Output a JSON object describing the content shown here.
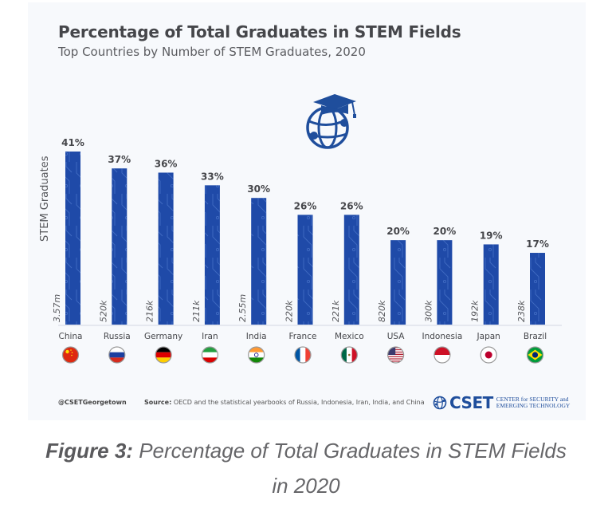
{
  "colors": {
    "bar": "#1f4aa8",
    "bar_pattern": "#5b86d6",
    "title": "#45464a",
    "text": "#55565a",
    "background": "#f7f9fc",
    "brand": "#1f4e9c"
  },
  "chart_data": {
    "type": "bar",
    "title": "Percentage of Total Graduates in STEM Fields",
    "subtitle": "Top Countries by Number of STEM Graduates, 2020",
    "xlabel": "",
    "ylabel": "STEM Graduates",
    "ylim": [
      0,
      45
    ],
    "grid": false,
    "legend": "none",
    "categories": [
      "China",
      "Russia",
      "Germany",
      "Iran",
      "India",
      "France",
      "Mexico",
      "USA",
      "Indonesia",
      "Japan",
      "Brazil"
    ],
    "series": [
      {
        "name": "Percentage of Total Graduates in STEM Fields",
        "values": [
          41,
          37,
          36,
          33,
          30,
          26,
          26,
          20,
          20,
          19,
          17
        ],
        "labels": [
          "41%",
          "37%",
          "36%",
          "33%",
          "30%",
          "26%",
          "26%",
          "20%",
          "20%",
          "19%",
          "17%"
        ]
      }
    ],
    "stem_graduates": [
      "3.57m",
      "520k",
      "216k",
      "211k",
      "2.55m",
      "220k",
      "221k",
      "820k",
      "300k",
      "192k",
      "238k"
    ],
    "flags": [
      "china-flag",
      "russia-flag",
      "germany-flag",
      "iran-flag",
      "india-flag",
      "france-flag",
      "mexico-flag",
      "usa-flag",
      "indonesia-flag",
      "japan-flag",
      "brazil-flag"
    ]
  },
  "footer": {
    "handle": "@CSETGeorgetown",
    "source_label": "Source:",
    "source_text": "OECD and the statistical yearbooks of Russia, Indonesia, Iran, India, and China",
    "logo_mark": "CSET",
    "logo_line1": "CENTER for SECURITY and",
    "logo_line2": "EMERGING TECHNOLOGY"
  },
  "caption": {
    "label": "Figure 3:",
    "text": "Percentage of Total Graduates in STEM Fields",
    "text2": "in 2020"
  },
  "icons": {
    "hero": "graduation-globe-icon",
    "logo": "cset-globe-icon"
  }
}
